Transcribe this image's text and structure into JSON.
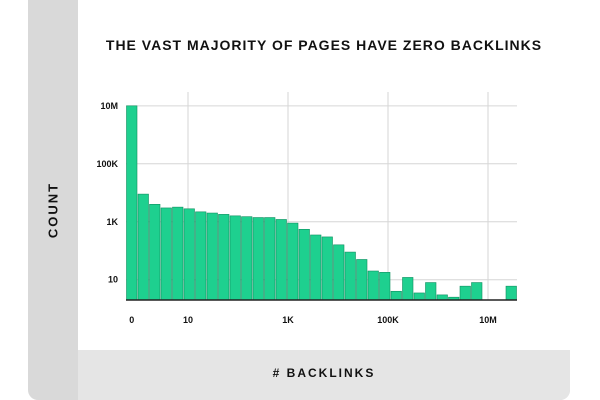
{
  "chart_data": {
    "type": "bar",
    "title": "THE VAST MAJORITY OF PAGES HAVE ZERO BACKLINKS",
    "xlabel": "# BACKLINKS",
    "ylabel": "COUNT",
    "y_scale": "log",
    "ylim": [
      2,
      30000000
    ],
    "y_ticks": [
      {
        "value": 10,
        "label": "10"
      },
      {
        "value": 1000,
        "label": "1K"
      },
      {
        "value": 100000,
        "label": "100K"
      },
      {
        "value": 10000000,
        "label": "10M"
      }
    ],
    "x_ticks": [
      {
        "value": 0,
        "label": "0"
      },
      {
        "value": 10,
        "label": "10"
      },
      {
        "value": 1000,
        "label": "1K"
      },
      {
        "value": 100000,
        "label": "100K"
      },
      {
        "value": 10000000,
        "label": "10M"
      }
    ],
    "grid": true,
    "bar_color": "#1ed08f",
    "bar_edge_color": "#0f8f60",
    "values": [
      10000000,
      9000,
      4000,
      3000,
      3200,
      2800,
      2200,
      2000,
      1800,
      1600,
      1500,
      1400,
      1400,
      1200,
      900,
      550,
      350,
      300,
      160,
      90,
      50,
      20,
      18,
      4,
      12,
      3.5,
      8,
      3,
      2.5,
      6,
      8,
      2,
      2,
      6
    ]
  }
}
